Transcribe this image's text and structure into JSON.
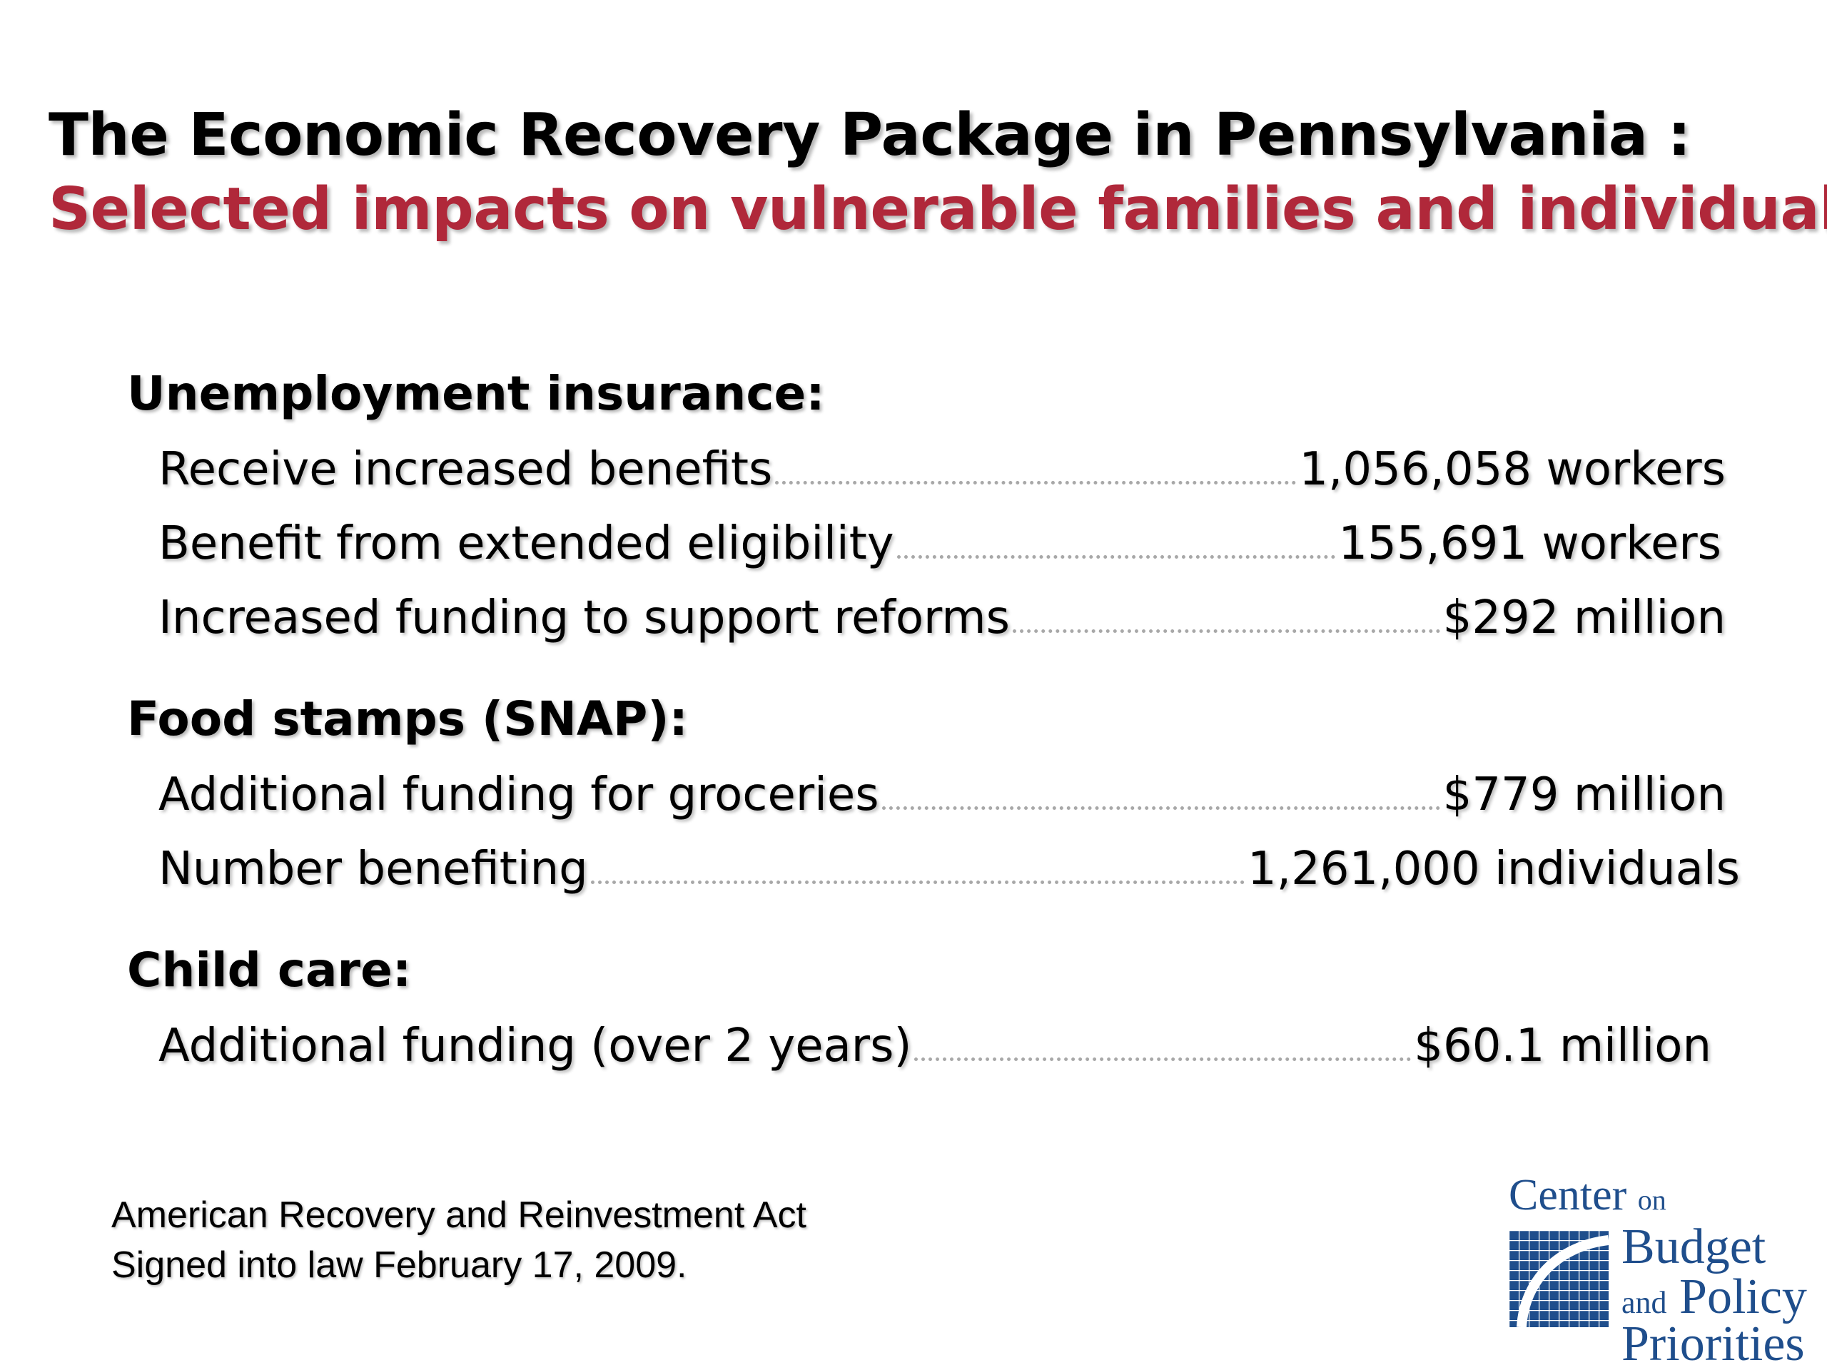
{
  "title": {
    "main": "The Economic Recovery Package in Pennsylvania :",
    "subtitle": "Selected impacts on vulnerable families and individuals"
  },
  "sections": [
    {
      "heading": "Unemployment insurance:",
      "rows": [
        {
          "label": "Receive increased benefits",
          "value": "1,056,058 workers"
        },
        {
          "label": "Benefit from extended eligibility",
          "value": "155,691 workers"
        },
        {
          "label": "Increased funding to support reforms",
          "value": "$292 million"
        }
      ]
    },
    {
      "heading": "Food stamps (SNAP):",
      "rows": [
        {
          "label": "Additional funding for groceries",
          "value": "$779 million"
        },
        {
          "label": "Number benefiting",
          "value": "1,261,000 individuals"
        }
      ]
    },
    {
      "heading": "Child care:",
      "rows": [
        {
          "label": "Additional funding (over 2 years)",
          "value": "$60.1 million"
        }
      ]
    }
  ],
  "footnote": {
    "line1": "American Recovery and Reinvestment Act",
    "line2": "Signed into law February 17, 2009."
  },
  "logo": {
    "center": "Center",
    "on": "on",
    "budget": "Budget",
    "and": "and",
    "policy": "Policy",
    "priorities": "Priorities",
    "color": "#1f4e8c"
  },
  "colors": {
    "subtitle": "#b0283a",
    "leader_dots": "#a8a8a8"
  }
}
